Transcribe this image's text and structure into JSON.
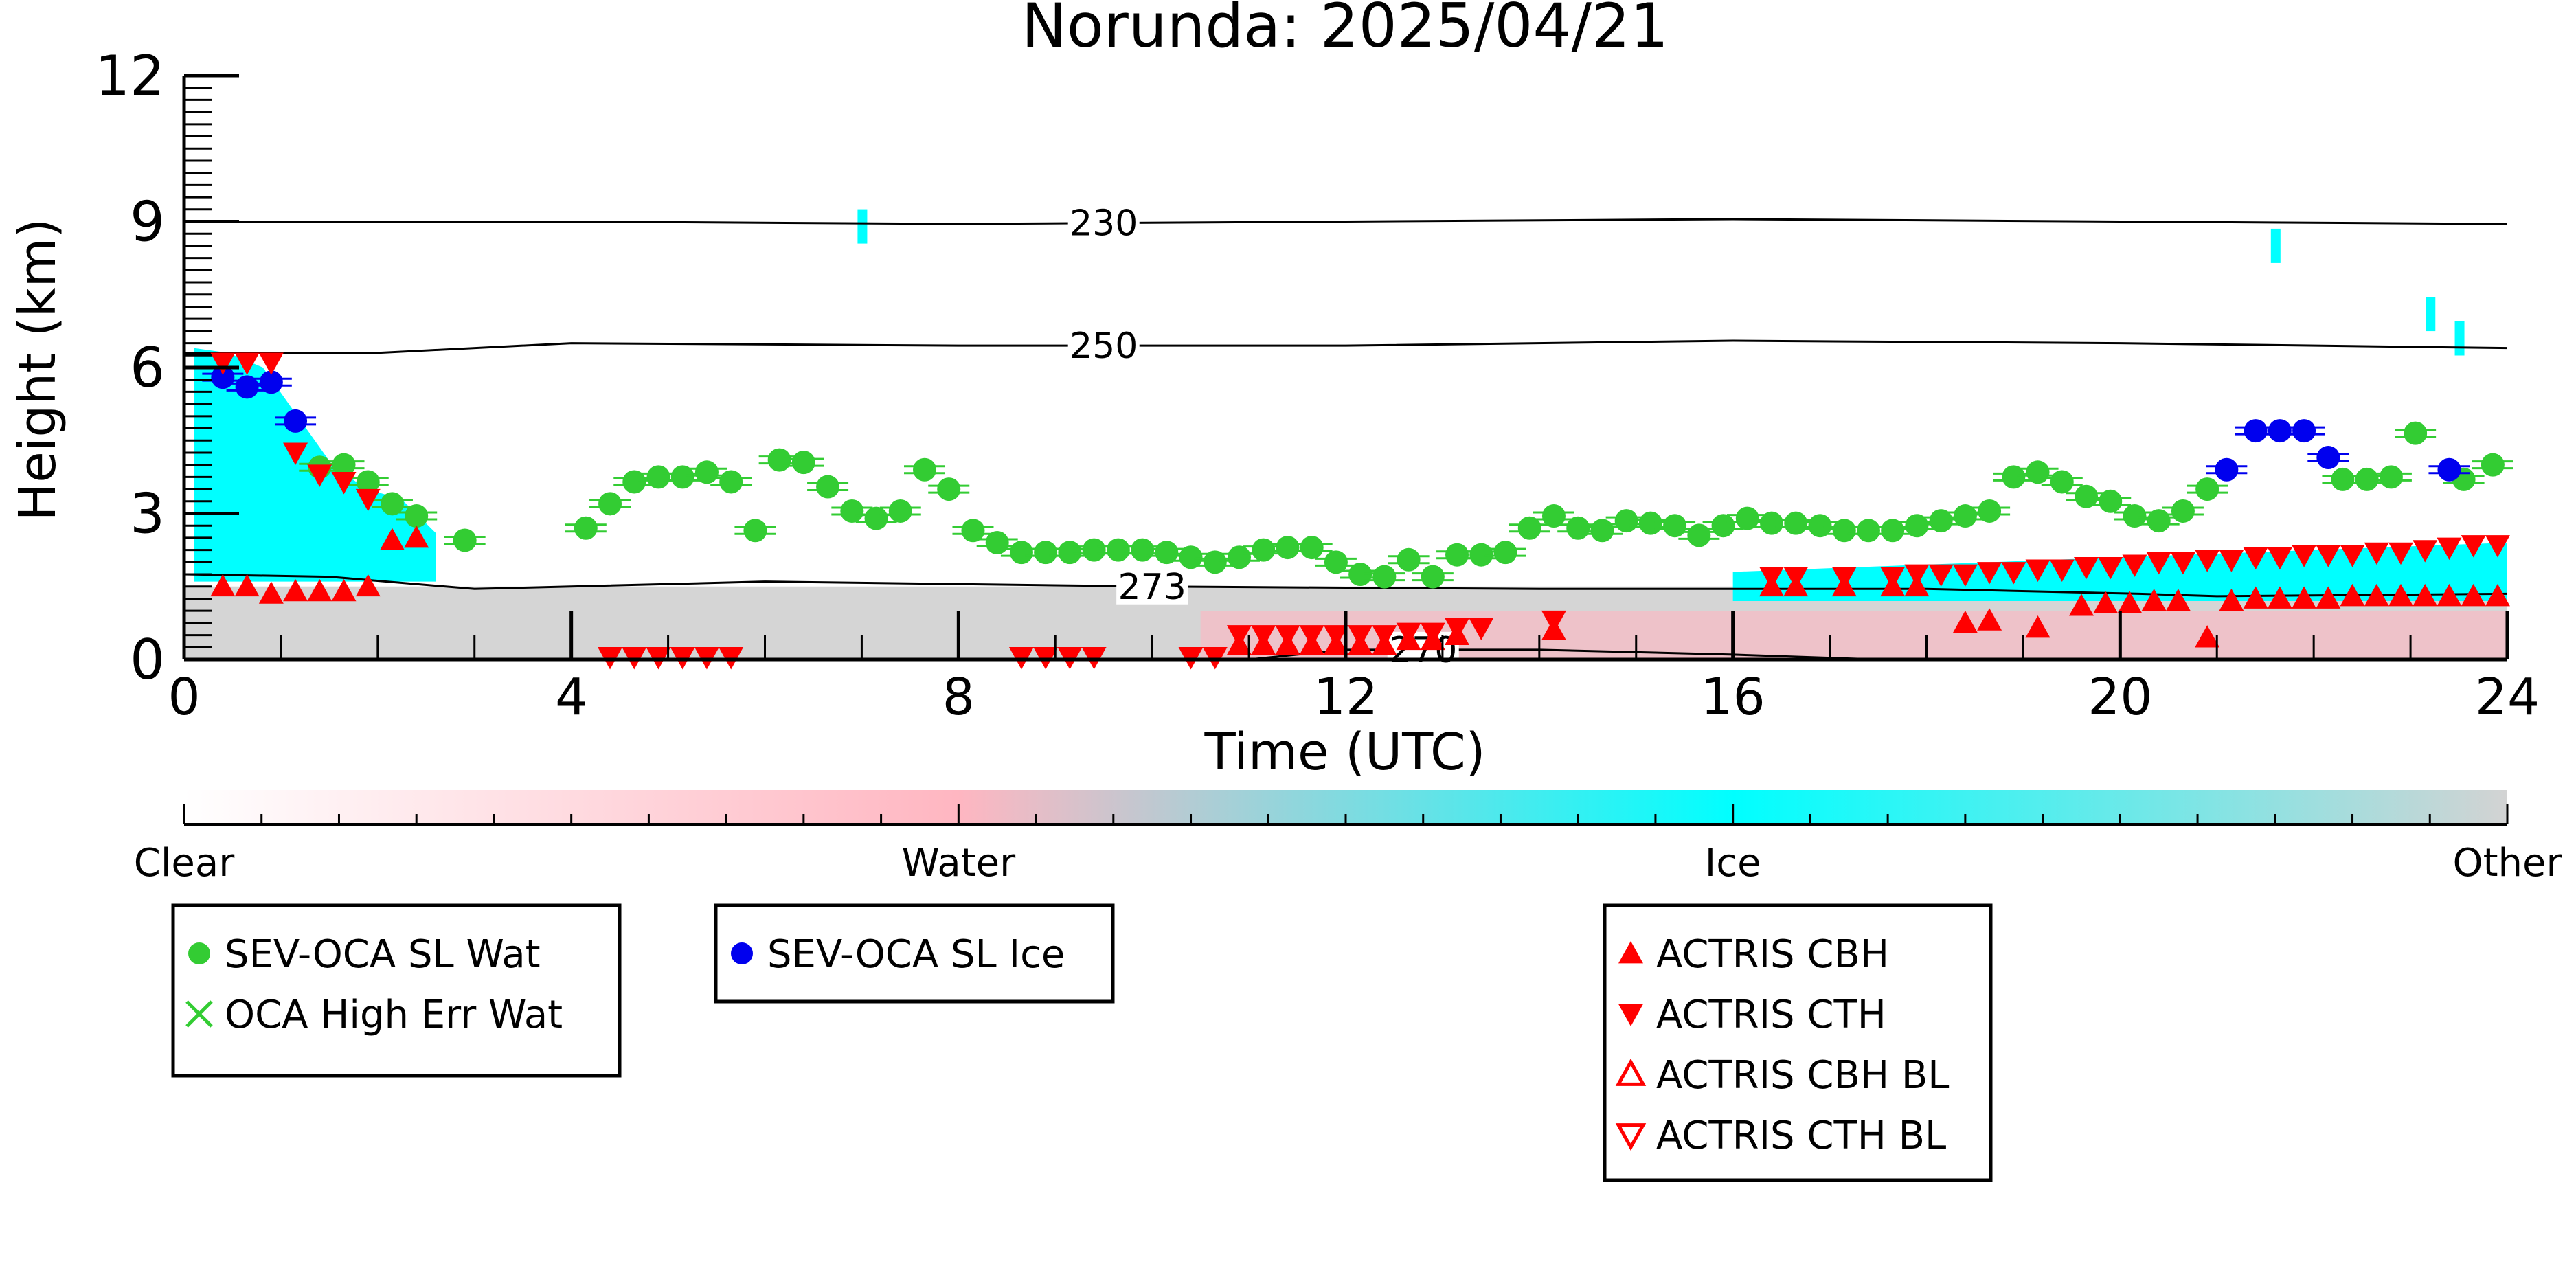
{
  "chart_data": {
    "type": "scatter",
    "title": "Norunda: 2025/04/21",
    "xlabel": "Time (UTC)",
    "ylabel": "Height (km)",
    "xlim": [
      0,
      24
    ],
    "ylim": [
      0,
      12
    ],
    "x_ticks": [
      0,
      4,
      8,
      12,
      16,
      20,
      24
    ],
    "y_ticks": [
      0,
      3,
      6,
      9,
      12
    ],
    "grid": false,
    "legend_placement": "below",
    "background": {
      "description_colors": {
        "clear": "#ffffff",
        "water": "#ffb6c1",
        "ice": "#00ffff",
        "other": "#d3d3d3"
      },
      "ice_regions": [
        {
          "x": [
            0.1,
            2.6
          ],
          "top": [
            6.4,
            6.3,
            6.0,
            5.0,
            4.0,
            3.5,
            3.3,
            2.6
          ],
          "bottom": 1.6
        },
        {
          "x": [
            16.0,
            24.0
          ],
          "top": [
            1.8,
            2.4
          ],
          "bottom": 1.2
        }
      ],
      "ice_wisps": [
        [
          7.0,
          8.9
        ],
        [
          23.2,
          7.1
        ],
        [
          23.5,
          6.6
        ],
        [
          21.6,
          8.5
        ]
      ],
      "other_region": {
        "x": [
          0,
          24
        ],
        "top": 1.5,
        "bottom": 0
      },
      "water_region": {
        "x": [
          10.5,
          24
        ],
        "top": 1.0,
        "bottom": 0
      }
    },
    "contours": [
      {
        "label": "230",
        "points": [
          [
            0,
            9.0
          ],
          [
            4,
            9.0
          ],
          [
            8,
            8.95
          ],
          [
            12,
            9.0
          ],
          [
            16,
            9.05
          ],
          [
            20,
            9.0
          ],
          [
            24,
            8.95
          ]
        ],
        "label_x": 9.5
      },
      {
        "label": "250",
        "points": [
          [
            0,
            6.3
          ],
          [
            2,
            6.3
          ],
          [
            4,
            6.5
          ],
          [
            8,
            6.45
          ],
          [
            12,
            6.45
          ],
          [
            16,
            6.55
          ],
          [
            20,
            6.5
          ],
          [
            24,
            6.4
          ]
        ],
        "label_x": 9.5
      },
      {
        "label": "273",
        "points": [
          [
            0,
            1.75
          ],
          [
            1.5,
            1.7
          ],
          [
            3,
            1.45
          ],
          [
            6,
            1.6
          ],
          [
            10,
            1.5
          ],
          [
            14,
            1.45
          ],
          [
            18,
            1.45
          ],
          [
            20.2,
            1.35
          ],
          [
            21,
            1.3
          ],
          [
            24,
            1.35
          ]
        ],
        "label_x": 10.0
      },
      {
        "label": "270",
        "points": [
          [
            11.0,
            0.0
          ],
          [
            12.0,
            0.2
          ],
          [
            14.0,
            0.2
          ],
          [
            16.0,
            0.1
          ],
          [
            17.5,
            0.0
          ]
        ],
        "label_x": 12.8
      }
    ],
    "colorbar": {
      "labels": [
        "Clear",
        "Water",
        "Ice",
        "Other"
      ],
      "colors": [
        "#ffffff",
        "#ffb6c1",
        "#00ffff",
        "#d3d3d3"
      ]
    },
    "series": [
      {
        "name": "SEV-OCA SL Wat",
        "marker": "circle",
        "color": "#33cc33",
        "x": [
          1.4,
          1.65,
          1.9,
          2.15,
          2.4,
          2.9,
          4.15,
          4.4,
          4.65,
          4.9,
          5.15,
          5.4,
          5.65,
          5.9,
          6.15,
          6.4,
          6.65,
          6.9,
          7.15,
          7.4,
          7.65,
          7.9,
          8.15,
          8.4,
          8.65,
          8.9,
          9.15,
          9.4,
          9.65,
          9.9,
          10.15,
          10.4,
          10.65,
          10.9,
          11.15,
          11.4,
          11.65,
          11.9,
          12.15,
          12.4,
          12.65,
          12.9,
          13.15,
          13.4,
          13.65,
          13.9,
          14.15,
          14.4,
          14.65,
          14.9,
          15.15,
          15.4,
          15.65,
          15.9,
          16.15,
          16.4,
          16.65,
          16.9,
          17.15,
          17.4,
          17.65,
          17.9,
          18.15,
          18.4,
          18.65,
          18.9,
          19.15,
          19.4,
          19.65,
          19.9,
          20.15,
          20.4,
          20.65,
          20.9,
          22.3,
          22.55,
          22.8,
          23.05,
          23.55,
          23.85
        ],
        "y": [
          3.95,
          4.0,
          3.65,
          3.2,
          2.95,
          2.45,
          2.7,
          3.2,
          3.65,
          3.75,
          3.75,
          3.85,
          3.65,
          2.65,
          4.1,
          4.05,
          3.55,
          3.05,
          2.9,
          3.05,
          3.9,
          3.5,
          2.65,
          2.4,
          2.2,
          2.2,
          2.2,
          2.25,
          2.25,
          2.25,
          2.2,
          2.1,
          2.0,
          2.1,
          2.25,
          2.3,
          2.3,
          2.0,
          1.75,
          1.7,
          2.05,
          1.7,
          2.15,
          2.15,
          2.2,
          2.7,
          2.95,
          2.7,
          2.65,
          2.85,
          2.8,
          2.75,
          2.55,
          2.75,
          2.9,
          2.8,
          2.8,
          2.75,
          2.65,
          2.65,
          2.65,
          2.75,
          2.85,
          2.95,
          3.05,
          3.75,
          3.85,
          3.65,
          3.35,
          3.25,
          2.95,
          2.85,
          3.05,
          3.5,
          3.7,
          3.7,
          3.75,
          4.65,
          3.7,
          4.0
        ]
      },
      {
        "name": "OCA High Err Wat",
        "marker": "x",
        "color": "#33cc33",
        "x": [],
        "y": []
      },
      {
        "name": "SEV-OCA SL Ice",
        "marker": "circle",
        "color": "#0000ee",
        "x": [
          0.4,
          0.65,
          0.9,
          1.15,
          21.1,
          21.4,
          21.65,
          21.9,
          22.15,
          23.4
        ],
        "y": [
          5.8,
          5.6,
          5.7,
          4.9,
          3.9,
          4.7,
          4.7,
          4.7,
          4.15,
          3.9
        ]
      },
      {
        "name": "ACTRIS CBH",
        "marker": "triangle-up",
        "color": "#ff0000",
        "x": [
          0.4,
          0.65,
          0.9,
          1.15,
          1.4,
          1.65,
          1.9,
          2.15,
          2.4,
          10.9,
          11.15,
          11.4,
          11.65,
          11.9,
          12.15,
          12.4,
          12.65,
          12.9,
          13.15,
          14.15,
          16.4,
          16.65,
          17.15,
          17.65,
          17.9,
          18.4,
          18.65,
          19.15,
          19.6,
          19.85,
          20.1,
          20.35,
          20.6,
          20.9,
          21.15,
          21.4,
          21.65,
          21.9,
          22.15,
          22.4,
          22.65,
          22.9,
          23.15,
          23.4,
          23.65,
          23.9
        ],
        "y": [
          1.5,
          1.5,
          1.35,
          1.4,
          1.4,
          1.4,
          1.5,
          2.45,
          2.5,
          0.3,
          0.3,
          0.3,
          0.3,
          0.3,
          0.3,
          0.3,
          0.4,
          0.4,
          0.5,
          0.6,
          1.5,
          1.5,
          1.5,
          1.5,
          1.5,
          0.75,
          0.8,
          0.65,
          1.1,
          1.15,
          1.15,
          1.2,
          1.2,
          0.45,
          1.2,
          1.25,
          1.25,
          1.25,
          1.25,
          1.3,
          1.3,
          1.3,
          1.3,
          1.3,
          1.3,
          1.3
        ]
      },
      {
        "name": "ACTRIS CTH",
        "marker": "triangle-down",
        "color": "#ff0000",
        "x": [
          0.4,
          0.65,
          0.9,
          1.15,
          1.4,
          1.65,
          1.9,
          4.4,
          4.65,
          4.9,
          5.15,
          5.4,
          5.65,
          8.65,
          8.9,
          9.15,
          9.4,
          10.4,
          10.65,
          10.9,
          11.15,
          11.4,
          11.65,
          11.9,
          12.15,
          12.4,
          12.65,
          12.9,
          13.15,
          13.4,
          14.15,
          16.4,
          16.65,
          17.15,
          17.65,
          17.9,
          18.15,
          18.4,
          18.65,
          18.9,
          19.15,
          19.4,
          19.65,
          19.9,
          20.15,
          20.4,
          20.65,
          20.9,
          21.15,
          21.4,
          21.65,
          21.9,
          22.15,
          22.4,
          22.65,
          22.9,
          23.15,
          23.4,
          23.65,
          23.9
        ],
        "y": [
          6.1,
          6.1,
          6.1,
          4.25,
          3.8,
          3.65,
          3.3,
          0.05,
          0.05,
          0.05,
          0.05,
          0.05,
          0.05,
          0.05,
          0.05,
          0.05,
          0.05,
          0.05,
          0.05,
          0.5,
          0.5,
          0.5,
          0.5,
          0.5,
          0.5,
          0.5,
          0.55,
          0.55,
          0.65,
          0.65,
          0.8,
          1.7,
          1.7,
          1.7,
          1.7,
          1.75,
          1.75,
          1.75,
          1.8,
          1.8,
          1.85,
          1.85,
          1.9,
          1.9,
          1.95,
          2.0,
          2.0,
          2.05,
          2.05,
          2.1,
          2.1,
          2.15,
          2.15,
          2.15,
          2.2,
          2.2,
          2.25,
          2.3,
          2.35,
          2.35
        ]
      },
      {
        "name": "ACTRIS CBH BL",
        "marker": "triangle-up-open",
        "color": "#ff0000",
        "x": [],
        "y": []
      },
      {
        "name": "ACTRIS CTH BL",
        "marker": "triangle-down-open",
        "color": "#ff0000",
        "x": [],
        "y": []
      }
    ],
    "legends": [
      {
        "entries": [
          "SEV-OCA SL Wat",
          "OCA High Err Wat"
        ]
      },
      {
        "entries": [
          "SEV-OCA SL Ice"
        ]
      },
      {
        "entries": [
          "ACTRIS CBH",
          "ACTRIS CTH",
          "ACTRIS CBH BL",
          "ACTRIS CTH BL"
        ]
      }
    ]
  }
}
